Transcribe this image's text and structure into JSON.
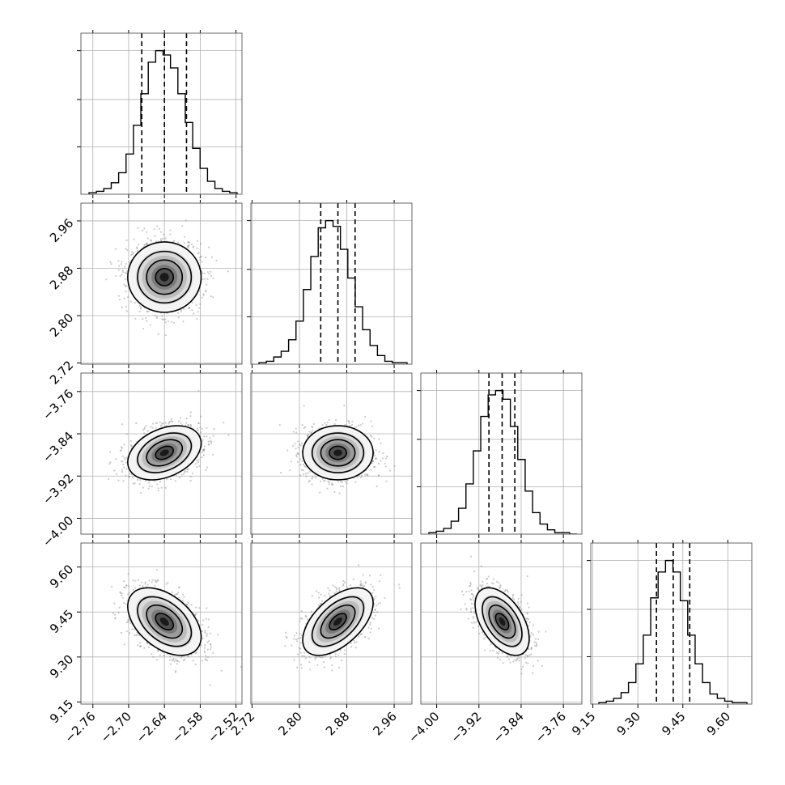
{
  "chart_data": {
    "type": "corner",
    "title": "",
    "grid": true,
    "parameters": [
      {
        "lim": [
          -2.78,
          -2.51
        ],
        "ticks": [
          -2.76,
          -2.7,
          -2.64,
          -2.58,
          -2.52
        ],
        "tick_labels": [
          "−2.76",
          "−2.70",
          "−2.64",
          "−2.58",
          "−2.52"
        ],
        "mean": -2.64,
        "sigma": 0.03,
        "quantiles": [
          -2.678,
          -2.64,
          -2.603
        ]
      },
      {
        "lim": [
          2.718,
          2.99
        ],
        "ticks": [
          2.72,
          2.8,
          2.88,
          2.96
        ],
        "tick_labels": [
          "2.72",
          "2.80",
          "2.88",
          "2.96"
        ],
        "mean": 2.865,
        "sigma": 0.029,
        "quantiles": [
          2.836,
          2.865,
          2.894
        ]
      },
      {
        "lim": [
          -4.03,
          -3.725
        ],
        "ticks": [
          -4.0,
          -3.92,
          -3.84,
          -3.76
        ],
        "tick_labels": [
          "−4.00",
          "−3.92",
          "−3.84",
          "−3.76"
        ],
        "mean": -3.876,
        "sigma": 0.025,
        "quantiles": [
          -3.901,
          -3.876,
          -3.852
        ]
      },
      {
        "lim": [
          9.143,
          9.68
        ],
        "ticks": [
          9.15,
          9.3,
          9.45,
          9.6
        ],
        "tick_labels": [
          "9.15",
          "9.30",
          "9.45",
          "9.60"
        ],
        "mean": 9.418,
        "sigma": 0.055,
        "quantiles": [
          9.362,
          9.418,
          9.473
        ]
      }
    ],
    "correlations": [
      [
        1,
        0,
        0.35,
        -0.45
      ],
      [
        0,
        1,
        0,
        0.55
      ],
      [
        0.35,
        0,
        1,
        -0.5
      ],
      [
        -0.45,
        0.55,
        -0.5,
        1
      ]
    ],
    "histograms": [
      [
        1,
        2,
        4,
        8,
        15,
        28,
        48,
        70,
        92,
        100,
        97,
        88,
        70,
        50,
        32,
        18,
        9,
        4,
        2,
        1
      ],
      [
        1,
        2,
        5,
        9,
        17,
        30,
        52,
        75,
        95,
        100,
        96,
        80,
        60,
        40,
        24,
        13,
        6,
        2,
        1,
        1
      ],
      [
        1,
        2,
        4,
        9,
        18,
        35,
        58,
        82,
        97,
        100,
        94,
        75,
        52,
        30,
        15,
        7,
        3,
        1,
        1,
        0
      ],
      [
        1,
        2,
        4,
        8,
        15,
        28,
        48,
        74,
        92,
        100,
        92,
        72,
        48,
        28,
        15,
        7,
        4,
        2,
        1,
        1
      ]
    ],
    "contour_levels": [
      "0.5σ",
      "1σ",
      "1.5σ",
      "2σ"
    ]
  }
}
